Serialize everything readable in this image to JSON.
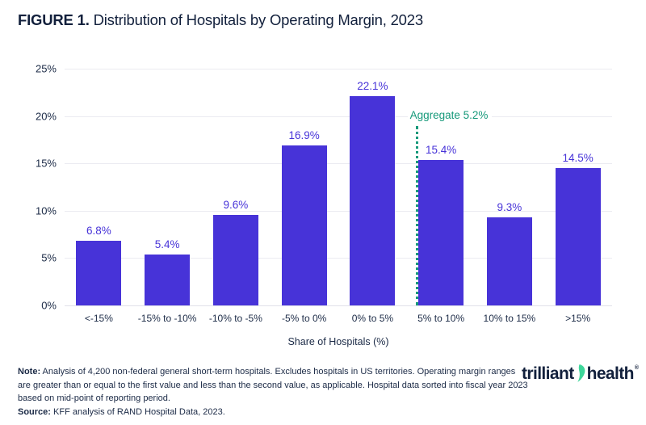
{
  "figure": {
    "title_prefix": "FIGURE 1.",
    "title_rest": " Distribution of Hospitals by Operating Margin, 2023"
  },
  "chart_data": {
    "type": "bar",
    "title": "FIGURE 1. Distribution of Hospitals by Operating Margin, 2023",
    "categories": [
      "<-15%",
      "-15% to -10%",
      "-10% to -5%",
      "-5% to 0%",
      "0% to 5%",
      "5% to 10%",
      "10% to 15%",
      ">15%"
    ],
    "values": [
      6.8,
      5.4,
      9.6,
      16.9,
      22.1,
      15.4,
      9.3,
      14.5
    ],
    "value_labels": [
      "6.8%",
      "5.4%",
      "9.6%",
      "16.9%",
      "22.1%",
      "15.4%",
      "9.3%",
      "14.5%"
    ],
    "xlabel": "Share of Hospitals (%)",
    "ylabel": "",
    "ylim": [
      0,
      25
    ],
    "ytick_values": [
      0,
      5,
      10,
      15,
      20,
      25
    ],
    "ytick_labels": [
      "0%",
      "5%",
      "10%",
      "15%",
      "20%",
      "25%"
    ],
    "grid": true,
    "legend": false,
    "annotation": {
      "text": "Aggregate 5.2%",
      "value": 5.2,
      "between_categories": [
        "0% to 5%",
        "5% to 10%"
      ]
    },
    "colors": {
      "bar": "#4733d8",
      "value_label": "#4733d8",
      "annotation": "#16997a",
      "axis_text": "#1b2a46",
      "grid": "#ebebf1"
    }
  },
  "footnote": {
    "note_label": "Note:",
    "note_text": " Analysis of 4,200 non-federal general short-term hospitals. Excludes hospitals in US territories. Operating margin ranges are greater than or equal to the first value and less than the second value, as applicable. Hospital data sorted into fiscal year 2023 based on mid-point of reporting period.",
    "source_label": "Source:",
    "source_text": " KFF analysis of RAND Hospital Data, 2023."
  },
  "logo": {
    "word1": "trilliant",
    "word2": "health",
    "registered": "®",
    "swoosh_color": "#3ed69a"
  }
}
